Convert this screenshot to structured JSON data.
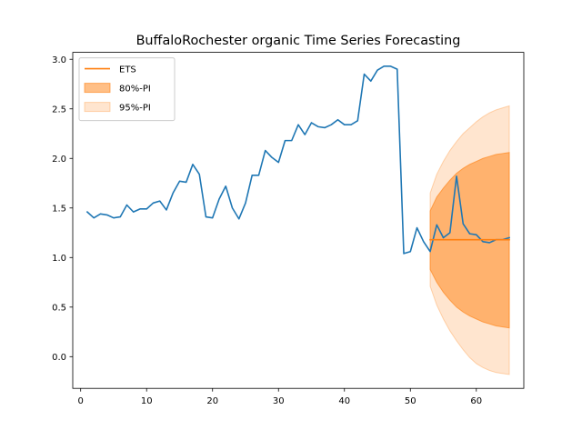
{
  "chart_data": {
    "type": "line",
    "title": "BuffaloRochester organic Time Series Forecasting",
    "xlabel": "",
    "ylabel": "",
    "xlim": [
      -1.2,
      67.2
    ],
    "ylim": [
      -0.32,
      3.07
    ],
    "xticks": [
      0,
      10,
      20,
      30,
      40,
      50,
      60
    ],
    "yticks": [
      0.0,
      0.5,
      1.0,
      1.5,
      2.0,
      2.5,
      3.0
    ],
    "xtick_labels": [
      "0",
      "10",
      "20",
      "30",
      "40",
      "50",
      "60"
    ],
    "ytick_labels": [
      "0.0",
      "0.5",
      "1.0",
      "1.5",
      "2.0",
      "2.5",
      "3.0"
    ],
    "grid": false,
    "legend_position": "top-left",
    "legend": [
      {
        "label": "ETS",
        "kind": "line",
        "color": "#ff7f0e"
      },
      {
        "label": "80%-PI",
        "kind": "patch",
        "color": "#ff7f0e",
        "opacity": 0.5
      },
      {
        "label": "95%-PI",
        "kind": "patch",
        "color": "#ff7f0e",
        "opacity": 0.2
      }
    ],
    "series": [
      {
        "role": "actual",
        "color": "#1f77b4",
        "x": [
          1,
          2,
          3,
          4,
          5,
          6,
          7,
          8,
          9,
          10,
          11,
          12,
          13,
          14,
          15,
          16,
          17,
          18,
          19,
          20,
          21,
          22,
          23,
          24,
          25,
          26,
          27,
          28,
          29,
          30,
          31,
          32,
          33,
          34,
          35,
          36,
          37,
          38,
          39,
          40,
          41,
          42,
          43,
          44,
          45,
          46,
          47,
          48,
          49,
          50,
          51,
          52,
          53,
          54,
          55,
          56,
          57,
          58,
          59,
          60,
          61,
          62,
          63,
          64,
          65
        ],
        "y": [
          1.46,
          1.4,
          1.44,
          1.43,
          1.4,
          1.41,
          1.53,
          1.46,
          1.49,
          1.49,
          1.55,
          1.57,
          1.48,
          1.65,
          1.77,
          1.76,
          1.94,
          1.84,
          1.41,
          1.4,
          1.59,
          1.72,
          1.5,
          1.39,
          1.55,
          1.83,
          1.83,
          2.08,
          2.01,
          1.96,
          2.18,
          2.18,
          2.34,
          2.24,
          2.36,
          2.32,
          2.31,
          2.34,
          2.39,
          2.34,
          2.34,
          2.38,
          2.85,
          2.78,
          2.89,
          2.93,
          2.93,
          2.9,
          1.04,
          1.06,
          1.3,
          1.16,
          1.06,
          1.33,
          1.2,
          1.25,
          1.82,
          1.34,
          1.24,
          1.23,
          1.16,
          1.15,
          1.18,
          1.18,
          1.2
        ]
      },
      {
        "role": "forecast",
        "name": "ETS",
        "color": "#ff7f0e",
        "x": [
          53,
          65
        ],
        "y": [
          1.18,
          1.18
        ]
      }
    ],
    "intervals": [
      {
        "name": "95%-PI",
        "color": "#ff7f0e",
        "opacity": 0.2,
        "x": [
          53,
          54,
          55,
          56,
          57,
          58,
          59,
          60,
          61,
          62,
          63,
          64,
          65
        ],
        "lower": [
          0.71,
          0.52,
          0.38,
          0.26,
          0.16,
          0.07,
          -0.01,
          -0.07,
          -0.11,
          -0.14,
          -0.16,
          -0.17,
          -0.18
        ],
        "upper": [
          1.65,
          1.84,
          1.97,
          2.08,
          2.17,
          2.25,
          2.31,
          2.37,
          2.42,
          2.46,
          2.49,
          2.51,
          2.53
        ]
      },
      {
        "name": "80%-PI",
        "color": "#ff7f0e",
        "opacity": 0.5,
        "x": [
          53,
          54,
          55,
          56,
          57,
          58,
          59,
          60,
          61,
          62,
          63,
          64,
          65
        ],
        "lower": [
          0.88,
          0.75,
          0.65,
          0.57,
          0.5,
          0.45,
          0.41,
          0.38,
          0.35,
          0.33,
          0.31,
          0.3,
          0.29
        ],
        "upper": [
          1.47,
          1.61,
          1.7,
          1.78,
          1.85,
          1.9,
          1.94,
          1.97,
          2.0,
          2.02,
          2.04,
          2.05,
          2.06
        ]
      }
    ]
  }
}
